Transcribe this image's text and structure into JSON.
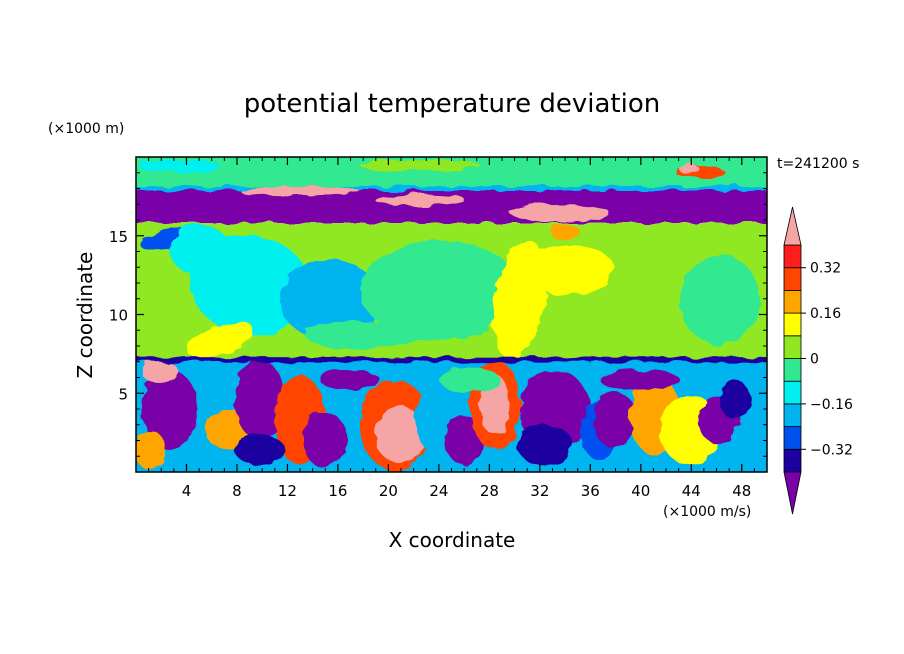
{
  "chart_data": {
    "type": "heatmap",
    "title": "potential temperature deviation",
    "xlabel": "X coordinate",
    "ylabel": "Z coordinate",
    "x_unit": "(×1000 m/s)",
    "y_unit": "(×1000 m)",
    "time_label": "t=241200 s",
    "xlim": [
      0,
      50
    ],
    "ylim": [
      0,
      20
    ],
    "x_ticks": [
      4,
      8,
      12,
      16,
      20,
      24,
      28,
      32,
      36,
      40,
      44,
      48
    ],
    "y_ticks": [
      5,
      10,
      15
    ],
    "colorbar": {
      "levels": [
        -0.4,
        -0.32,
        -0.24,
        -0.16,
        -0.08,
        0,
        0.08,
        0.16,
        0.24,
        0.32,
        0.4
      ],
      "labels": [
        "0.32",
        "0.16",
        "0",
        "−0.16",
        "−0.32"
      ],
      "label_values": [
        0.32,
        0.16,
        0,
        -0.16,
        -0.32
      ],
      "colors": [
        "#7a00a8",
        "#1e00a0",
        "#0050f0",
        "#00b4f0",
        "#00f0f0",
        "#30e890",
        "#90e820",
        "#ffff00",
        "#ffa500",
        "#ff4500",
        "#ff1e1e",
        "#f5a5a5"
      ]
    },
    "layers": [
      {
        "z_range": [
          18.0,
          20.0
        ],
        "dominant_range": [
          0,
          0.08
        ]
      },
      {
        "z_range": [
          15.8,
          18.0
        ],
        "dominant_range": [
          -0.4,
          -0.32
        ]
      },
      {
        "z_range": [
          7.1,
          15.8
        ],
        "dominant_range": [
          -0.08,
          0.16
        ]
      },
      {
        "z_range": [
          0,
          7.1
        ],
        "dominant_range": [
          -0.4,
          0.4
        ]
      }
    ]
  }
}
